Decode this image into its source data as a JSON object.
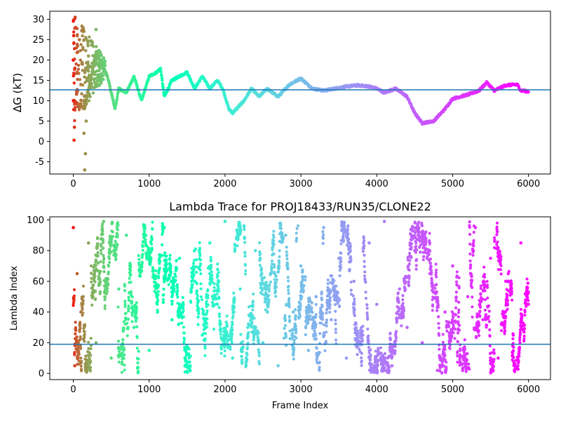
{
  "chart_data": [
    {
      "type": "scatter",
      "title": "",
      "xlabel": "",
      "ylabel": "ΔG (kT)",
      "xlim": [
        -310,
        6290
      ],
      "ylim": [
        -8,
        32
      ],
      "xticks": [
        0,
        1000,
        2000,
        3000,
        4000,
        5000,
        6000
      ],
      "yticks": [
        -5,
        0,
        5,
        10,
        15,
        20,
        25,
        30
      ],
      "hline": {
        "y": 12.7,
        "color": "#1f77b4"
      },
      "colormap": "rainbow (red = early frames, violet = late frames)",
      "grid": false,
      "trace_points": [
        [
          0,
          10
        ],
        [
          150,
          8
        ],
        [
          300,
          22
        ],
        [
          450,
          16
        ],
        [
          550,
          8
        ],
        [
          600,
          13
        ],
        [
          700,
          12
        ],
        [
          800,
          16
        ],
        [
          900,
          10
        ],
        [
          1000,
          16
        ],
        [
          1100,
          17
        ],
        [
          1150,
          18
        ],
        [
          1200,
          11
        ],
        [
          1300,
          15
        ],
        [
          1400,
          16
        ],
        [
          1500,
          17
        ],
        [
          1600,
          13
        ],
        [
          1700,
          16
        ],
        [
          1800,
          13
        ],
        [
          1900,
          15
        ],
        [
          1970,
          13
        ],
        [
          2050,
          8
        ],
        [
          2100,
          7
        ],
        [
          2250,
          10
        ],
        [
          2350,
          13
        ],
        [
          2450,
          11
        ],
        [
          2550,
          13
        ],
        [
          2700,
          11
        ],
        [
          2850,
          14
        ],
        [
          3000,
          15.5
        ],
        [
          3150,
          13
        ],
        [
          3300,
          12.5
        ],
        [
          3450,
          13
        ],
        [
          3600,
          13.5
        ],
        [
          3750,
          13.8
        ],
        [
          3900,
          13.5
        ],
        [
          4000,
          13
        ],
        [
          4100,
          12
        ],
        [
          4250,
          13
        ],
        [
          4400,
          11
        ],
        [
          4500,
          7
        ],
        [
          4600,
          4.5
        ],
        [
          4750,
          5
        ],
        [
          4900,
          8
        ],
        [
          5000,
          10.5
        ],
        [
          5200,
          11.5
        ],
        [
          5350,
          12.5
        ],
        [
          5450,
          14.5
        ],
        [
          5550,
          12.5
        ],
        [
          5700,
          13.8
        ],
        [
          5850,
          14
        ],
        [
          5900,
          12.5
        ],
        [
          6000,
          12.3
        ]
      ],
      "early_scatter_points": [
        [
          0,
          20
        ],
        [
          5,
          26
        ],
        [
          8,
          10
        ],
        [
          10,
          0.3
        ],
        [
          15,
          3.5
        ],
        [
          20,
          18
        ],
        [
          25,
          30.5
        ],
        [
          30,
          28
        ],
        [
          40,
          23
        ],
        [
          50,
          17
        ],
        [
          60,
          22
        ],
        [
          70,
          9
        ],
        [
          80,
          25
        ],
        [
          100,
          14
        ],
        [
          120,
          19
        ],
        [
          130,
          27
        ],
        [
          140,
          2
        ],
        [
          150,
          -7
        ],
        [
          160,
          -3
        ],
        [
          170,
          5
        ],
        [
          180,
          15
        ],
        [
          200,
          21
        ],
        [
          220,
          11
        ],
        [
          250,
          24
        ],
        [
          280,
          17
        ],
        [
          300,
          27.5
        ],
        [
          320,
          19
        ],
        [
          350,
          16
        ],
        [
          380,
          18
        ],
        [
          400,
          20.5
        ]
      ]
    },
    {
      "type": "scatter",
      "title": "Lambda Trace for PROJ18433/RUN35/CLONE22",
      "xlabel": "Frame Index",
      "ylabel": "Lambda Index",
      "xlim": [
        -310,
        6290
      ],
      "ylim": [
        -4,
        102
      ],
      "xticks": [
        0,
        1000,
        2000,
        3000,
        4000,
        5000,
        6000
      ],
      "yticks": [
        0,
        20,
        40,
        60,
        80,
        100
      ],
      "hline": {
        "y": 19,
        "color": "#1f77b4"
      },
      "colormap": "rainbow (red = early frames, violet = late frames)",
      "grid": false,
      "sample_points": [
        [
          0,
          95
        ],
        [
          20,
          5
        ],
        [
          50,
          65
        ],
        [
          100,
          40
        ],
        [
          200,
          85
        ],
        [
          300,
          20
        ],
        [
          400,
          99
        ],
        [
          500,
          10
        ],
        [
          600,
          55
        ],
        [
          700,
          90
        ],
        [
          800,
          30
        ],
        [
          900,
          70
        ],
        [
          1000,
          15
        ],
        [
          1100,
          50
        ],
        [
          1200,
          95
        ],
        [
          1300,
          35
        ],
        [
          1400,
          75
        ],
        [
          1500,
          5
        ],
        [
          1600,
          60
        ],
        [
          1700,
          25
        ],
        [
          1800,
          85
        ],
        [
          1900,
          45
        ],
        [
          2000,
          99
        ],
        [
          2100,
          10
        ],
        [
          2200,
          55
        ],
        [
          2300,
          30
        ],
        [
          2400,
          80
        ],
        [
          2500,
          20
        ],
        [
          2600,
          65
        ],
        [
          2700,
          5
        ],
        [
          2800,
          90
        ],
        [
          2900,
          40
        ],
        [
          3000,
          70
        ],
        [
          3100,
          15
        ],
        [
          3200,
          50
        ],
        [
          3300,
          95
        ],
        [
          3400,
          35
        ],
        [
          3500,
          75
        ],
        [
          3600,
          10
        ],
        [
          3700,
          60
        ],
        [
          3800,
          25
        ],
        [
          3900,
          85
        ],
        [
          4000,
          45
        ],
        [
          4100,
          99
        ],
        [
          4200,
          5
        ],
        [
          4300,
          55
        ],
        [
          4400,
          30
        ],
        [
          4500,
          80
        ],
        [
          4600,
          20
        ],
        [
          4700,
          65
        ],
        [
          4800,
          2
        ],
        [
          4900,
          40
        ],
        [
          5000,
          70
        ],
        [
          5100,
          15
        ],
        [
          5200,
          50
        ],
        [
          5300,
          95
        ],
        [
          5400,
          35
        ],
        [
          5500,
          75
        ],
        [
          5600,
          10
        ],
        [
          5700,
          60
        ],
        [
          5800,
          25
        ],
        [
          5900,
          85
        ],
        [
          6000,
          45
        ]
      ]
    }
  ]
}
